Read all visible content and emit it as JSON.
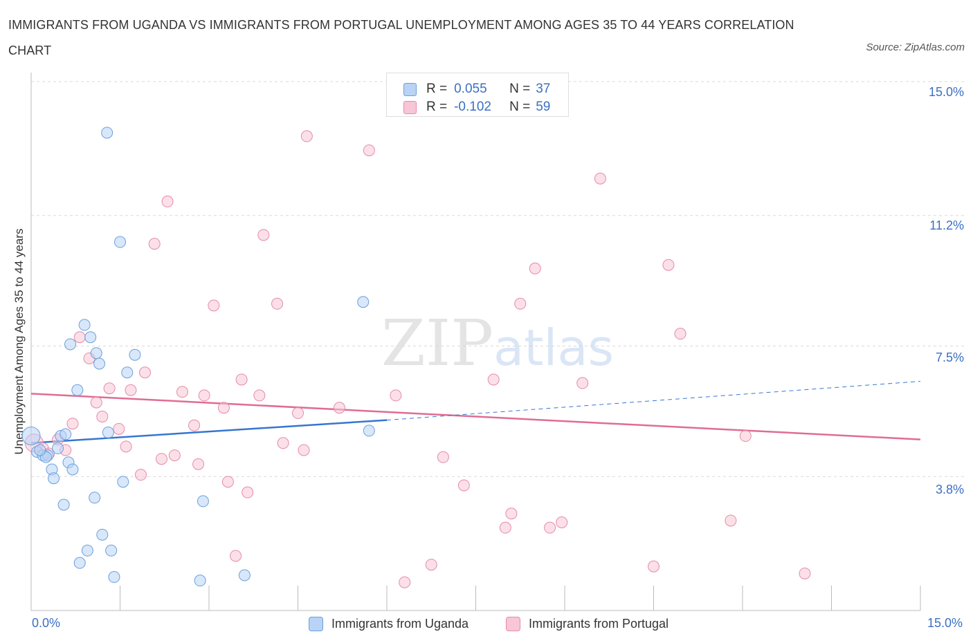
{
  "title": "IMMIGRANTS FROM UGANDA VS IMMIGRANTS FROM PORTUGAL UNEMPLOYMENT AMONG AGES 35 TO 44 YEARS CORRELATION CHART",
  "source": "Source: ZipAtlas.com",
  "watermark": {
    "zip": "ZIP",
    "atlas": "atlas"
  },
  "colors": {
    "uganda_fill": "#b8d3f5",
    "uganda_stroke": "#6b9fdc",
    "uganda_line": "#3576d0",
    "portugal_fill": "#f8c6d6",
    "portugal_stroke": "#e68aa8",
    "portugal_line": "#e06c94",
    "grid": "#d9d9d9",
    "axis_text": "#3a6fc4"
  },
  "legend": {
    "uganda": {
      "r_label": "R =",
      "r_value": "0.055",
      "n_label": "N =",
      "n_value": "37",
      "name": "Immigrants from Uganda"
    },
    "portugal": {
      "r_label": "R =",
      "r_value": "-0.102",
      "n_label": "N =",
      "n_value": "59",
      "name": "Immigrants from Portugal"
    }
  },
  "axis_labels": {
    "x_min": "0.0%",
    "x_max": "15.0%",
    "y_ticks": [
      "15.0%",
      "11.2%",
      "7.5%",
      "3.8%"
    ]
  },
  "chart_data": {
    "type": "scatter",
    "title": "IMMIGRANTS FROM UGANDA VS IMMIGRANTS FROM PORTUGAL UNEMPLOYMENT AMONG AGES 35 TO 44 YEARS CORRELATION CHART",
    "xlabel": "",
    "ylabel": "Unemployment Among Ages 35 to 44 years",
    "xlim": [
      0,
      15
    ],
    "ylim": [
      0,
      15
    ],
    "y_ticks": [
      3.8,
      7.5,
      11.2,
      15.0
    ],
    "series": [
      {
        "name": "Immigrants from Uganda",
        "r": 0.055,
        "n": 37,
        "trend": {
          "x0": 0.0,
          "y0": 4.75,
          "x1": 6.0,
          "y1": 5.4,
          "dash_to_x": 15.0,
          "dash_to_y": 6.5
        },
        "points": [
          {
            "x": 0.0,
            "y": 4.95,
            "big": true
          },
          {
            "x": 0.1,
            "y": 4.5
          },
          {
            "x": 0.2,
            "y": 4.4
          },
          {
            "x": 0.28,
            "y": 4.4
          },
          {
            "x": 0.35,
            "y": 4.0
          },
          {
            "x": 0.38,
            "y": 3.75
          },
          {
            "x": 0.45,
            "y": 4.6
          },
          {
            "x": 0.5,
            "y": 4.95
          },
          {
            "x": 0.55,
            "y": 3.0
          },
          {
            "x": 0.58,
            "y": 5.0
          },
          {
            "x": 0.63,
            "y": 4.2
          },
          {
            "x": 0.66,
            "y": 7.55
          },
          {
            "x": 0.7,
            "y": 4.0
          },
          {
            "x": 0.78,
            "y": 6.25
          },
          {
            "x": 0.82,
            "y": 1.35
          },
          {
            "x": 0.9,
            "y": 8.1
          },
          {
            "x": 0.95,
            "y": 1.7
          },
          {
            "x": 1.0,
            "y": 7.75
          },
          {
            "x": 1.07,
            "y": 3.2
          },
          {
            "x": 1.1,
            "y": 7.3
          },
          {
            "x": 1.15,
            "y": 7.0
          },
          {
            "x": 1.2,
            "y": 2.15
          },
          {
            "x": 1.28,
            "y": 13.55
          },
          {
            "x": 1.3,
            "y": 5.05
          },
          {
            "x": 1.35,
            "y": 1.7
          },
          {
            "x": 1.4,
            "y": 0.95
          },
          {
            "x": 1.5,
            "y": 10.45
          },
          {
            "x": 1.55,
            "y": 3.65
          },
          {
            "x": 1.62,
            "y": 6.75
          },
          {
            "x": 1.75,
            "y": 7.25
          },
          {
            "x": 2.85,
            "y": 0.85
          },
          {
            "x": 2.9,
            "y": 3.1
          },
          {
            "x": 3.6,
            "y": 1.0
          },
          {
            "x": 5.6,
            "y": 8.75
          },
          {
            "x": 5.7,
            "y": 5.1
          },
          {
            "x": 0.25,
            "y": 4.35
          },
          {
            "x": 0.15,
            "y": 4.55
          }
        ]
      },
      {
        "name": "Immigrants from Portugal",
        "r": -0.102,
        "n": 59,
        "trend": {
          "x0": 0.0,
          "y0": 6.15,
          "x1": 15.0,
          "y1": 4.85
        },
        "points": [
          {
            "x": 0.05,
            "y": 4.75,
            "big": true
          },
          {
            "x": 0.2,
            "y": 4.6
          },
          {
            "x": 0.45,
            "y": 4.85
          },
          {
            "x": 0.58,
            "y": 4.55
          },
          {
            "x": 0.7,
            "y": 5.3
          },
          {
            "x": 0.82,
            "y": 7.75
          },
          {
            "x": 0.98,
            "y": 7.15
          },
          {
            "x": 1.1,
            "y": 5.9
          },
          {
            "x": 1.2,
            "y": 5.5
          },
          {
            "x": 1.32,
            "y": 6.3
          },
          {
            "x": 1.48,
            "y": 5.15
          },
          {
            "x": 1.6,
            "y": 4.65
          },
          {
            "x": 1.68,
            "y": 6.25
          },
          {
            "x": 1.85,
            "y": 3.85
          },
          {
            "x": 1.92,
            "y": 6.75
          },
          {
            "x": 2.08,
            "y": 10.4
          },
          {
            "x": 2.2,
            "y": 4.3
          },
          {
            "x": 2.3,
            "y": 11.6
          },
          {
            "x": 2.42,
            "y": 4.4
          },
          {
            "x": 2.55,
            "y": 6.2
          },
          {
            "x": 2.75,
            "y": 5.25
          },
          {
            "x": 2.82,
            "y": 4.15
          },
          {
            "x": 2.92,
            "y": 6.1
          },
          {
            "x": 3.08,
            "y": 8.65
          },
          {
            "x": 3.25,
            "y": 5.75
          },
          {
            "x": 3.32,
            "y": 3.65
          },
          {
            "x": 3.45,
            "y": 1.55
          },
          {
            "x": 3.55,
            "y": 6.55
          },
          {
            "x": 3.65,
            "y": 3.35
          },
          {
            "x": 3.85,
            "y": 6.1
          },
          {
            "x": 3.92,
            "y": 10.65
          },
          {
            "x": 4.15,
            "y": 8.7
          },
          {
            "x": 4.25,
            "y": 4.75
          },
          {
            "x": 4.5,
            "y": 5.6
          },
          {
            "x": 4.6,
            "y": 4.55
          },
          {
            "x": 4.65,
            "y": 13.45
          },
          {
            "x": 5.2,
            "y": 5.75
          },
          {
            "x": 5.7,
            "y": 13.05
          },
          {
            "x": 6.15,
            "y": 6.1
          },
          {
            "x": 6.3,
            "y": 0.8
          },
          {
            "x": 6.75,
            "y": 1.3
          },
          {
            "x": 6.95,
            "y": 4.35
          },
          {
            "x": 7.3,
            "y": 3.55
          },
          {
            "x": 7.8,
            "y": 6.55
          },
          {
            "x": 8.0,
            "y": 2.35
          },
          {
            "x": 8.1,
            "y": 2.75
          },
          {
            "x": 8.25,
            "y": 8.7
          },
          {
            "x": 8.5,
            "y": 9.7
          },
          {
            "x": 8.75,
            "y": 2.35
          },
          {
            "x": 8.95,
            "y": 2.5
          },
          {
            "x": 9.3,
            "y": 6.45
          },
          {
            "x": 9.6,
            "y": 12.25
          },
          {
            "x": 10.5,
            "y": 1.25
          },
          {
            "x": 10.75,
            "y": 9.8
          },
          {
            "x": 10.95,
            "y": 7.85
          },
          {
            "x": 11.8,
            "y": 2.55
          },
          {
            "x": 12.05,
            "y": 4.95
          },
          {
            "x": 13.05,
            "y": 1.05
          },
          {
            "x": 0.3,
            "y": 4.45
          }
        ]
      }
    ]
  }
}
